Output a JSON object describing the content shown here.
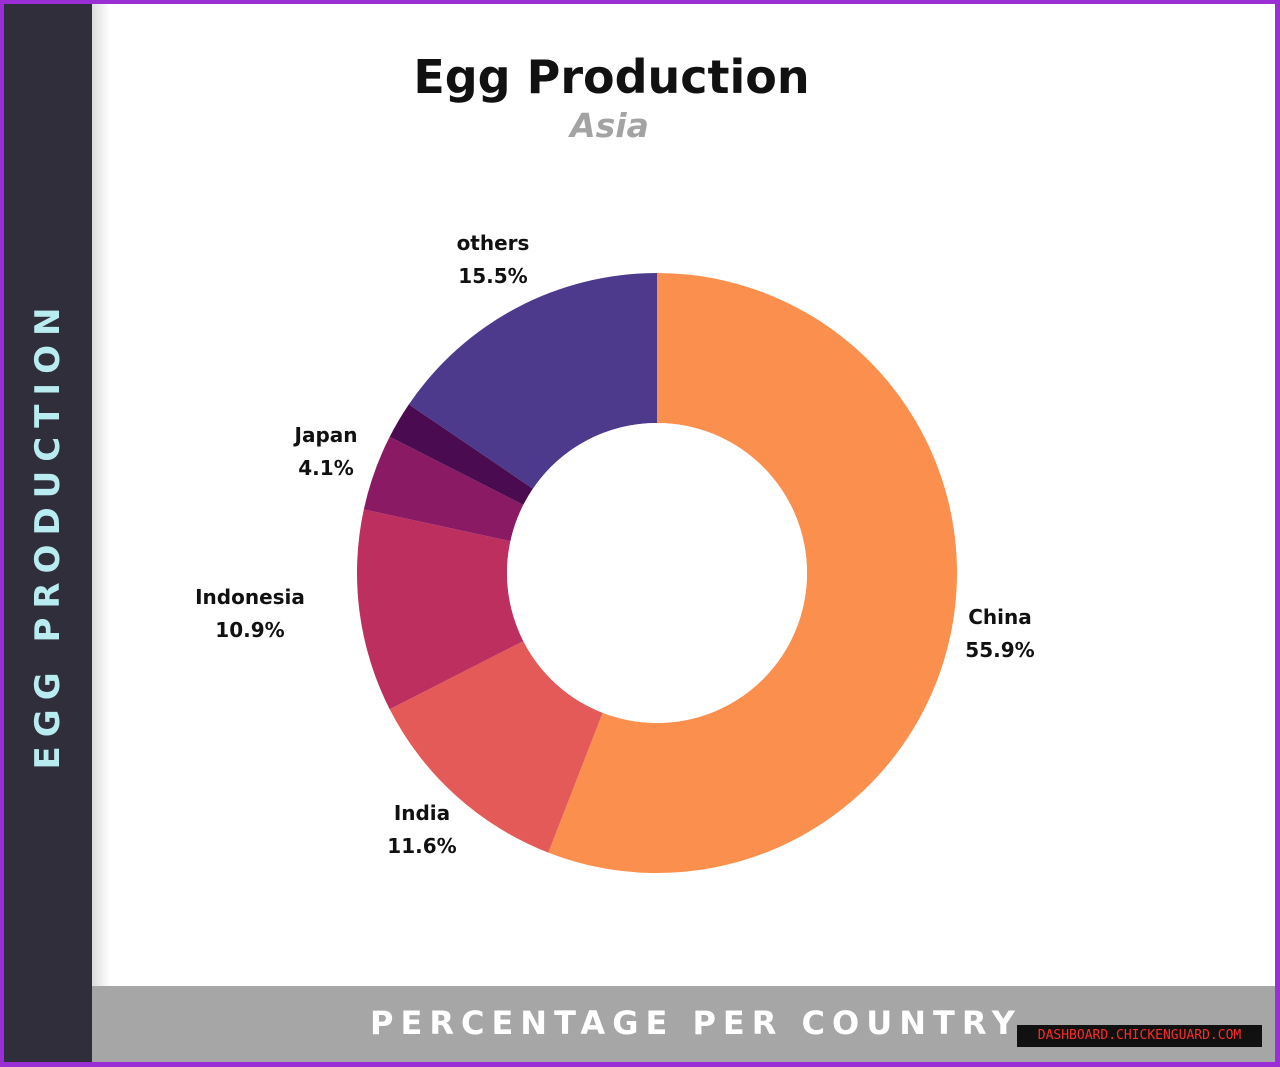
{
  "sidebar": {
    "label": "EGG PRODUCTION"
  },
  "footer": {
    "label": "PERCENTAGE PER COUNTRY"
  },
  "watermark": {
    "text": "DASHBOARD.CHICKENGUARD.COM"
  },
  "chart_data": {
    "type": "pie",
    "title": "Egg Production",
    "subtitle": "Asia",
    "donut": true,
    "unit": "%",
    "slices": [
      {
        "label": "China",
        "value": 55.9,
        "value_text": "55.9%",
        "color": "#fb8f4d"
      },
      {
        "label": "India",
        "value": 11.6,
        "value_text": "11.6%",
        "color": "#e35a58"
      },
      {
        "label": "Indonesia",
        "value": 10.9,
        "value_text": "10.9%",
        "color": "#bd2f5e"
      },
      {
        "label": "Japan",
        "value": 4.1,
        "value_text": "4.1%",
        "color": "#8a1a63"
      },
      {
        "label": "",
        "value": 2.0,
        "value_text": "",
        "color": "#4a0b50"
      },
      {
        "label": "others",
        "value": 15.5,
        "value_text": "15.5%",
        "color": "#4d3a8c"
      }
    ]
  }
}
